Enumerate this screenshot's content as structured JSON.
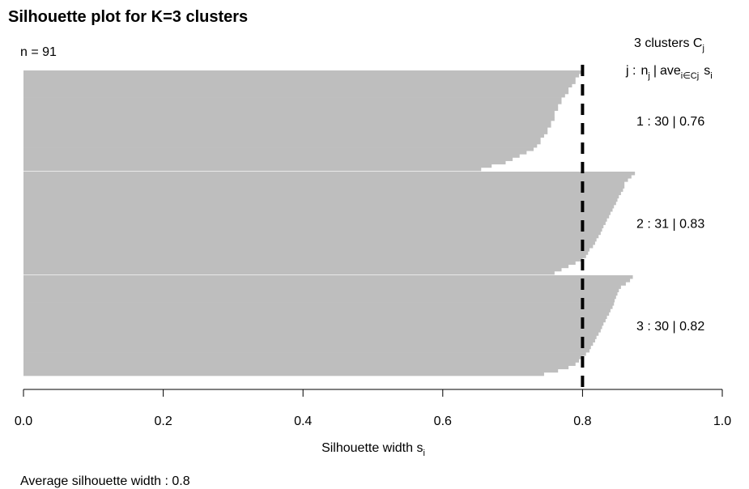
{
  "chart_data": {
    "type": "bar",
    "orientation": "horizontal",
    "title": "Silhouette plot for K=3 clusters",
    "n_label": "n = 91",
    "legend_header_line1": "3 clusters C",
    "legend_header_line1_sub": "j",
    "legend_header_line2": {
      "j": "j :",
      "n": "n",
      "n_sub": "j",
      "sep": "|",
      "ave": "ave",
      "ave_sub": "i∈Cj",
      "s": "s",
      "s_sub": "i"
    },
    "xlabel": "Silhouette width s",
    "xlabel_sub": "i",
    "xlim": [
      0,
      1
    ],
    "x_ticks": [
      0.0,
      0.2,
      0.4,
      0.6,
      0.8,
      1.0
    ],
    "x_tick_labels": [
      "0.0",
      "0.2",
      "0.4",
      "0.6",
      "0.8",
      "1.0"
    ],
    "average_width": 0.8,
    "footer_label": "Average silhouette width :  0.8",
    "bar_color": "#bebebe",
    "reference_line_color": "#000000",
    "clusters": [
      {
        "label": "1 :  30  |  0.76",
        "id": 1,
        "size": 30,
        "avg": 0.76,
        "values": [
          0.8,
          0.795,
          0.79,
          0.79,
          0.785,
          0.78,
          0.78,
          0.775,
          0.77,
          0.77,
          0.765,
          0.765,
          0.76,
          0.76,
          0.76,
          0.755,
          0.755,
          0.75,
          0.75,
          0.745,
          0.74,
          0.74,
          0.735,
          0.73,
          0.72,
          0.71,
          0.7,
          0.69,
          0.67,
          0.655
        ]
      },
      {
        "label": "2 :  31  |  0.83",
        "id": 2,
        "size": 31,
        "avg": 0.83,
        "values": [
          0.875,
          0.87,
          0.865,
          0.86,
          0.86,
          0.858,
          0.855,
          0.852,
          0.85,
          0.848,
          0.845,
          0.843,
          0.84,
          0.838,
          0.835,
          0.833,
          0.83,
          0.828,
          0.826,
          0.823,
          0.82,
          0.818,
          0.815,
          0.81,
          0.808,
          0.805,
          0.8,
          0.79,
          0.78,
          0.77,
          0.76
        ]
      },
      {
        "label": "3 :  30  |  0.82",
        "id": 3,
        "size": 30,
        "avg": 0.82,
        "values": [
          0.872,
          0.868,
          0.862,
          0.855,
          0.852,
          0.85,
          0.848,
          0.846,
          0.845,
          0.843,
          0.84,
          0.838,
          0.835,
          0.833,
          0.83,
          0.828,
          0.826,
          0.823,
          0.82,
          0.818,
          0.815,
          0.812,
          0.81,
          0.805,
          0.8,
          0.795,
          0.79,
          0.78,
          0.765,
          0.745
        ]
      }
    ]
  }
}
